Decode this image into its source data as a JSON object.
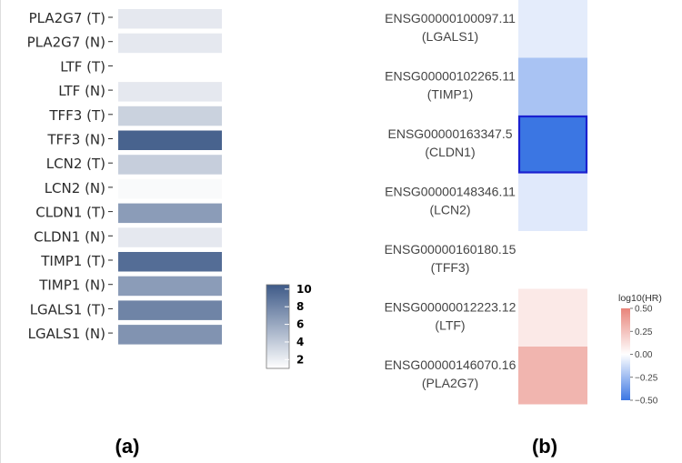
{
  "chart_data": [
    {
      "type": "heatmap",
      "panel_label": "(a)",
      "rows": [
        "PLA2G7 (T)",
        "PLA2G7 (N)",
        "LTF (T)",
        "LTF (N)",
        "TFF3 (T)",
        "TFF3 (N)",
        "LCN2 (T)",
        "LCN2 (N)",
        "CLDN1 (T)",
        "CLDN1 (N)",
        "TIMP1 (T)",
        "TIMP1 (N)",
        "LGALS1 (T)",
        "LGALS1 (N)"
      ],
      "values": [
        2.3,
        2.3,
        0.3,
        2.3,
        3.6,
        10.0,
        3.8,
        1.3,
        6.7,
        2.3,
        9.4,
        6.7,
        8.1,
        7.2
      ],
      "colorbar": {
        "ticks": [
          10,
          8,
          6,
          4,
          2
        ],
        "range": [
          1,
          10.5
        ],
        "low_color": "#ffffff",
        "high_color": "#3e5a88"
      }
    },
    {
      "type": "heatmap",
      "panel_label": "(b)",
      "rows": [
        {
          "id": "ENSG00000100097.11",
          "gene": "(LGALS1)"
        },
        {
          "id": "ENSG00000102265.11",
          "gene": "(TIMP1)"
        },
        {
          "id": "ENSG00000163347.5",
          "gene": "(CLDN1)"
        },
        {
          "id": "ENSG00000148346.11",
          "gene": "(LCN2)"
        },
        {
          "id": "ENSG00000160180.15",
          "gene": "(TFF3)"
        },
        {
          "id": "ENSG00000012223.12",
          "gene": "(LTF)"
        },
        {
          "id": "ENSG00000146070.16",
          "gene": "(PLA2G7)"
        }
      ],
      "values": [
        -0.07,
        -0.22,
        -0.52,
        -0.08,
        0.0,
        0.09,
        0.3
      ],
      "highlighted_row": 2,
      "colorbar": {
        "title": "log10(HR)",
        "ticks": [
          "0.50",
          "0.25",
          "0.00",
          "−0.25",
          "−0.50"
        ],
        "range": [
          -0.5,
          0.5
        ],
        "neg_color": "#3b76e3",
        "mid_color": "#ffffff",
        "pos_color": "#e8847a"
      }
    }
  ]
}
